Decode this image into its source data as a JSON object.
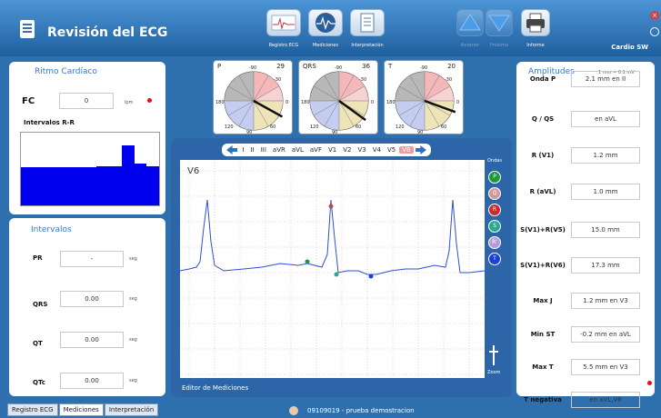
{
  "app": {
    "title": "Revisión del ECG",
    "company": "Cardio SW"
  },
  "toolbar": {
    "buttons": [
      {
        "label": "Registro ECG"
      },
      {
        "label": "Mediciones"
      },
      {
        "label": "Interpretación"
      },
      {
        "label": "Anterior"
      },
      {
        "label": "Próximo"
      },
      {
        "label": "Informe"
      }
    ]
  },
  "ritmo": {
    "title": "Ritmo Cardíaco",
    "fc_label": "FC",
    "fc_value": "0",
    "fc_unit": "lpm",
    "rr_label": "Intervalos R-R",
    "rr_bars": [
      0.52,
      0.52,
      0.52,
      0.53,
      0.53,
      0.53,
      0.54,
      0.54,
      0.82,
      0.57,
      0.54
    ]
  },
  "intervalos": {
    "title": "Intervalos",
    "rows": [
      {
        "label": "PR",
        "value": "-",
        "unit": "seg"
      },
      {
        "label": "QRS",
        "value": "0.00",
        "unit": "seg"
      },
      {
        "label": "QT",
        "value": "0.00",
        "unit": "seg"
      },
      {
        "label": "QTc",
        "value": "0.00",
        "unit": "seg"
      }
    ]
  },
  "axes": [
    {
      "label": "P",
      "value": "29"
    },
    {
      "label": "QRS",
      "value": "36"
    },
    {
      "label": "T",
      "value": "20"
    }
  ],
  "axis_ticks": {
    "top": "-90",
    "upper_right": "-30",
    "right": "0",
    "left": "180",
    "bottom_left": "120",
    "bottom": "90",
    "bottom_right": "60"
  },
  "editor": {
    "leads": [
      "I",
      "II",
      "III",
      "aVR",
      "aVL",
      "aVF",
      "V1",
      "V2",
      "V3",
      "V4",
      "V5",
      "V6"
    ],
    "selected_lead": "V6",
    "lead_label": "V6",
    "footer": "Editor de Mediciones",
    "ondas_title": "Ondas",
    "ondas": [
      {
        "label": "P",
        "color": "#1e9a3c"
      },
      {
        "label": "Q",
        "color": "#cf9a9a"
      },
      {
        "label": "R",
        "color": "#c62e2e"
      },
      {
        "label": "S",
        "color": "#2aa88f"
      },
      {
        "label": "R'",
        "color": "#b89ad8"
      },
      {
        "label": "T",
        "color": "#1c3fd9"
      }
    ],
    "zoom_label": "Zoom"
  },
  "amplitudes": {
    "title": "Amplitudes",
    "scale": "1 mm = 0.1 mV",
    "rows": [
      {
        "label": "Onda P",
        "value": "2.1 mm  en II"
      },
      {
        "label": "Q / QS",
        "value": "en aVL"
      },
      {
        "label": "R (V1)",
        "value": "1.2 mm"
      },
      {
        "label": "R (aVL)",
        "value": "1.0 mm"
      },
      {
        "label": "S(V1)+R(V5)",
        "value": "15.0 mm"
      },
      {
        "label": "S(V1)+R(V6)",
        "value": "17.3 mm"
      },
      {
        "label": "Max J",
        "value": "1.2 mm  en V3"
      },
      {
        "label": "Min ST",
        "value": "-0.2 mm  en aVL"
      },
      {
        "label": "Max T",
        "value": "5.5 mm  en V3"
      },
      {
        "label": "T negativa",
        "value": "en aVL,V6"
      }
    ]
  },
  "bottom_tabs": [
    {
      "label": "Registro ECG"
    },
    {
      "label": "Mediciones"
    },
    {
      "label": "Interpretación"
    }
  ],
  "patient": "09109019 - prueba demostracion",
  "colors": {
    "accent": "#3b77c5",
    "background": "#2e6fae",
    "bar": "#0000ee",
    "alert": "#e01414"
  }
}
